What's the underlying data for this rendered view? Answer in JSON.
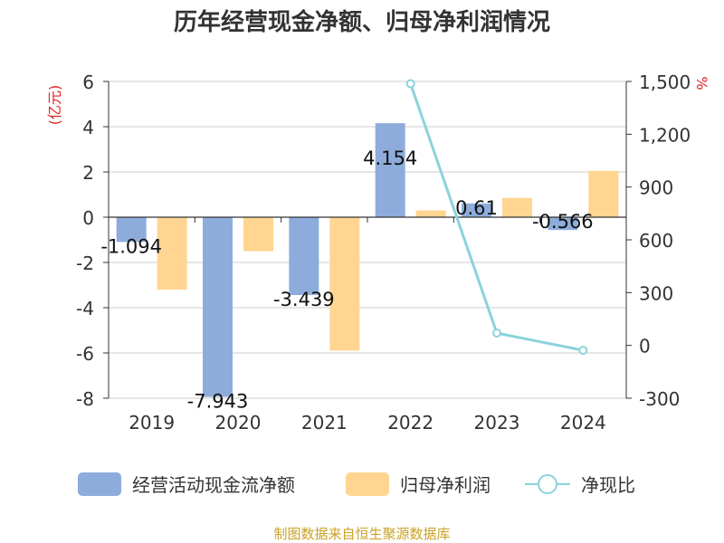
{
  "colors": {
    "cashflow": "#8EACDB",
    "profit": "#FFD591",
    "ratio": "#8BD3DB",
    "grid": "#CCCCCC",
    "axis": "#333333",
    "text": "#333333",
    "unit": "#E02020",
    "source": "#C9A227"
  },
  "chart_data": {
    "type": "bar",
    "title": "历年经营现金净额、归母净利润情况",
    "categories": [
      "2019",
      "2020",
      "2021",
      "2022",
      "2023",
      "2024"
    ],
    "series": [
      {
        "name": "经营活动现金流净额",
        "type": "bar",
        "axis": "left",
        "values": [
          -1.094,
          -7.943,
          -3.439,
          4.154,
          0.61,
          -0.566
        ],
        "labels": [
          "-1.094",
          "-7.943",
          "-3.439",
          "4.154",
          "0.61",
          "-0.566"
        ]
      },
      {
        "name": "归母净利润",
        "type": "bar",
        "axis": "left",
        "values": [
          -3.2,
          -1.5,
          -5.9,
          0.3,
          0.85,
          2.05
        ]
      },
      {
        "name": "净现比",
        "type": "line",
        "axis": "right",
        "points": [
          {
            "category": "2022",
            "value": 1487
          },
          {
            "category": "2023",
            "value": 70
          },
          {
            "category": "2024",
            "value": -28
          }
        ]
      }
    ],
    "y_left": {
      "min": -8,
      "max": 6,
      "ticks": [
        6,
        4,
        2,
        0,
        -2,
        -4,
        -6,
        -8
      ],
      "tick_labels": [
        "6",
        "4",
        "2",
        "0",
        "-2",
        "-4",
        "-6",
        "-8"
      ],
      "unit": "(亿元)"
    },
    "y_right": {
      "min": -300,
      "max": 1500,
      "ticks": [
        1500,
        1200,
        900,
        600,
        300,
        0,
        -300
      ],
      "tick_labels": [
        "1,500",
        "1,200",
        "900",
        "600",
        "300",
        "0",
        "-300"
      ],
      "unit": "%"
    },
    "legend": {
      "position": "bottom",
      "items": [
        "经营活动现金流净额",
        "归母净利润",
        "净现比"
      ]
    },
    "grid": true
  },
  "source": "制图数据来自恒生聚源数据库"
}
